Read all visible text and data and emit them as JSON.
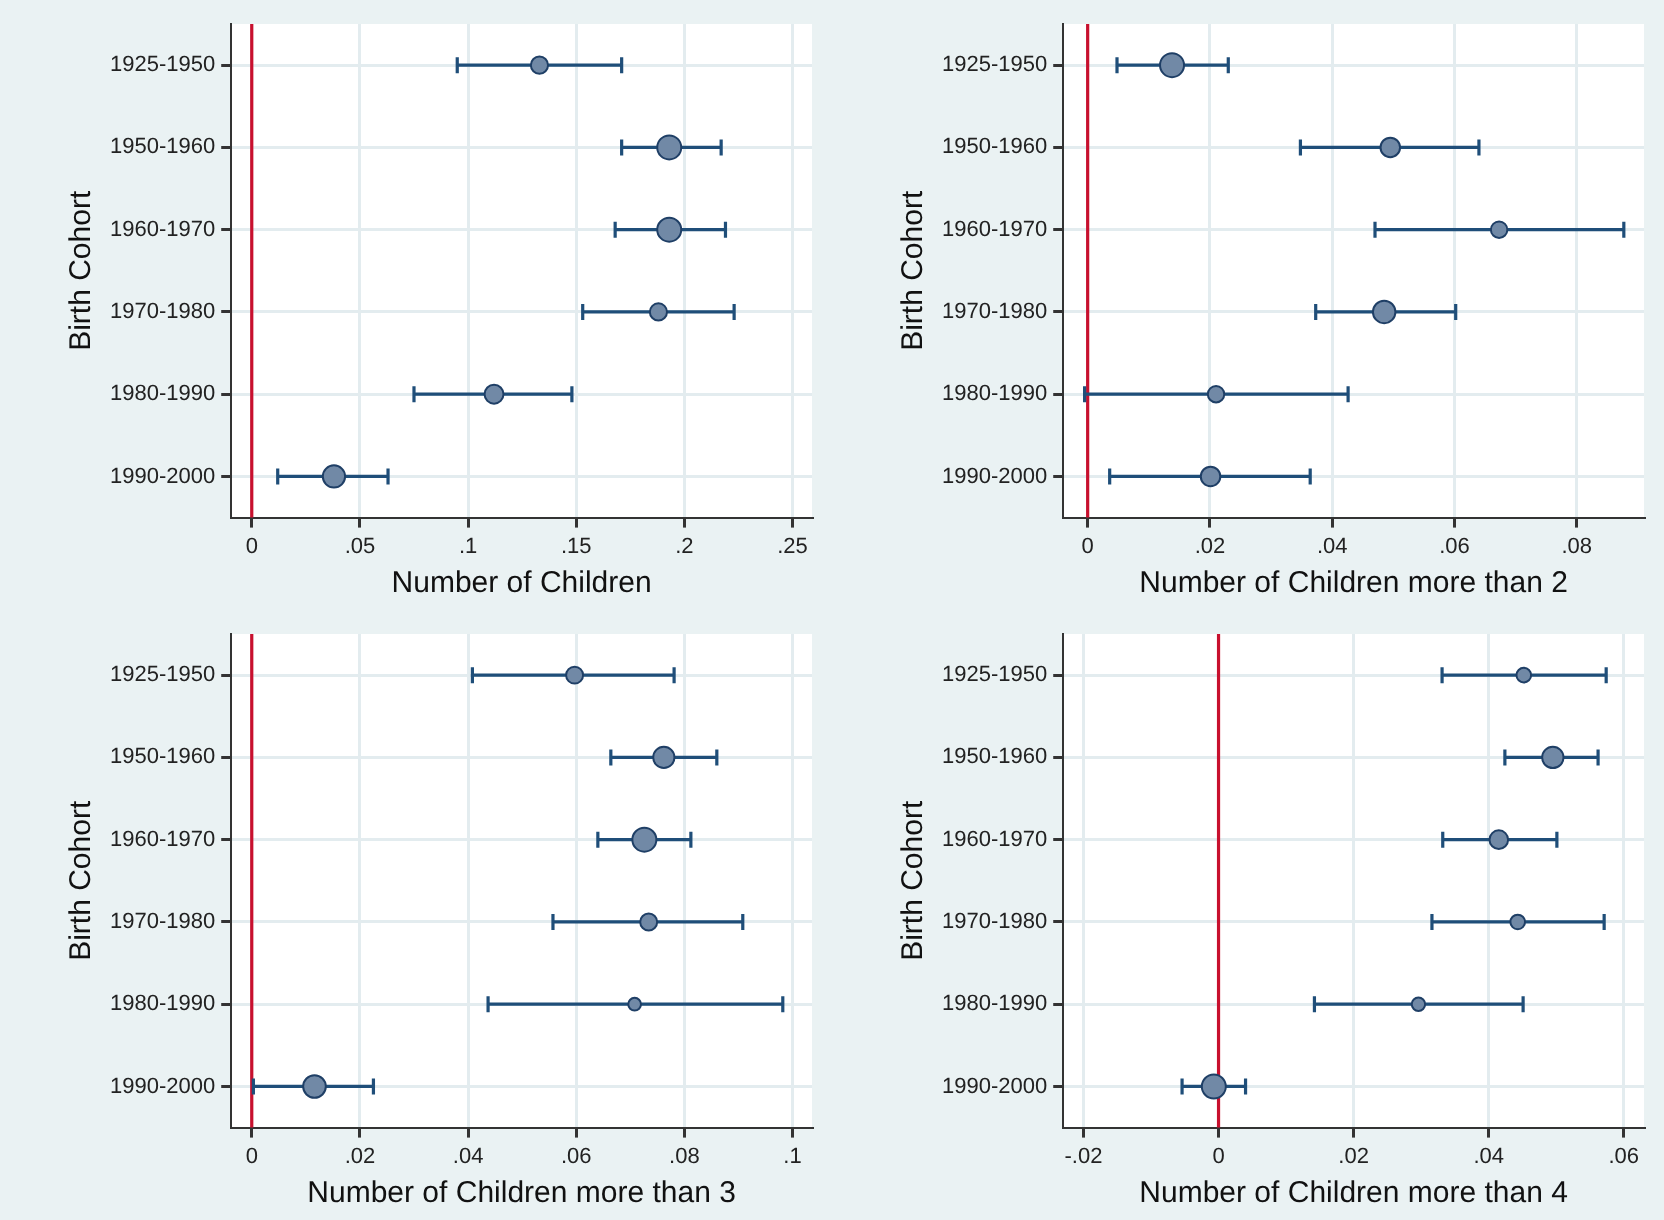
{
  "chart_data": [
    {
      "type": "bubble",
      "orientation": "horizontal",
      "xlabel": "Number of Children",
      "ylabel": "Birth Cohort",
      "categories": [
        "1925-1950",
        "1950-1960",
        "1960-1970",
        "1970-1980",
        "1980-1990",
        "1990-2000"
      ],
      "values": [
        0.133,
        0.193,
        0.193,
        0.188,
        0.112,
        0.038
      ],
      "errors": [
        [
          0.095,
          0.171
        ],
        [
          0.171,
          0.217
        ],
        [
          0.168,
          0.219
        ],
        [
          0.153,
          0.223
        ],
        [
          0.075,
          0.148
        ],
        [
          0.012,
          0.063
        ]
      ],
      "sizes": [
        0.51,
        1,
        1,
        0.51,
        0.62,
        0.86
      ],
      "color": "#7189a6",
      "xlim": [
        -0.0095,
        0.259
      ],
      "xticks": [
        {
          "value": 0,
          "label": "0"
        },
        {
          "value": 0.05,
          "label": ".05"
        },
        {
          "value": 0.1,
          "label": ".1"
        },
        {
          "value": 0.15,
          "label": ".15"
        },
        {
          "value": 0.2,
          "label": ".2"
        },
        {
          "value": 0.25,
          "label": ".25"
        }
      ],
      "ref_lines": [
        {
          "axis": "x",
          "value": 0,
          "color": "#c8102e"
        }
      ],
      "grid": true,
      "legend": false,
      "marker": "circle"
    },
    {
      "type": "bubble",
      "orientation": "horizontal",
      "xlabel": "Number of Children more than 2",
      "ylabel": "Birth Cohort",
      "categories": [
        "1925-1950",
        "1950-1960",
        "1960-1970",
        "1970-1980",
        "1980-1990",
        "1990-2000"
      ],
      "values": [
        0.0138,
        0.0495,
        0.0673,
        0.0485,
        0.021,
        0.0201
      ],
      "errors": [
        [
          0.0048,
          0.023
        ],
        [
          0.0348,
          0.064
        ],
        [
          0.047,
          0.0877
        ],
        [
          0.0373,
          0.0602
        ],
        [
          -0.0005,
          0.0426
        ],
        [
          0.0036,
          0.0364
        ]
      ],
      "sizes": [
        1,
        0.66,
        0.47,
        0.88,
        0.47,
        0.66
      ],
      "color": "#7189a6",
      "xlim": [
        -0.004,
        0.091
      ],
      "xticks": [
        {
          "value": 0,
          "label": "0"
        },
        {
          "value": 0.02,
          "label": ".02"
        },
        {
          "value": 0.04,
          "label": ".04"
        },
        {
          "value": 0.06,
          "label": ".06"
        },
        {
          "value": 0.08,
          "label": ".08"
        }
      ],
      "ref_lines": [
        {
          "axis": "x",
          "value": 0,
          "color": "#c8102e"
        }
      ],
      "grid": true,
      "legend": false,
      "marker": "circle"
    },
    {
      "type": "bubble",
      "orientation": "horizontal",
      "xlabel": "Number of Children more than 3",
      "ylabel": "Birth Cohort",
      "categories": [
        "1925-1950",
        "1950-1960",
        "1960-1970",
        "1970-1980",
        "1980-1990",
        "1990-2000"
      ],
      "values": [
        0.0597,
        0.0762,
        0.0726,
        0.0734,
        0.0708,
        0.0116
      ],
      "errors": [
        [
          0.0408,
          0.0781
        ],
        [
          0.0664,
          0.086
        ],
        [
          0.064,
          0.0812
        ],
        [
          0.0557,
          0.0908
        ],
        [
          0.0437,
          0.0982
        ],
        [
          0.0003,
          0.0225
        ]
      ],
      "sizes": [
        0.5,
        0.78,
        1,
        0.5,
        0.28,
        0.89
      ],
      "color": "#7189a6",
      "xlim": [
        -0.0038,
        0.1036
      ],
      "xticks": [
        {
          "value": 0,
          "label": "0"
        },
        {
          "value": 0.02,
          "label": ".02"
        },
        {
          "value": 0.04,
          "label": ".04"
        },
        {
          "value": 0.06,
          "label": ".06"
        },
        {
          "value": 0.08,
          "label": ".08"
        },
        {
          "value": 0.1,
          "label": ".1"
        }
      ],
      "ref_lines": [
        {
          "axis": "x",
          "value": 0,
          "color": "#c8102e"
        }
      ],
      "grid": true,
      "legend": false,
      "marker": "circle"
    },
    {
      "type": "bubble",
      "orientation": "horizontal",
      "xlabel": "Number of Children more than 4",
      "ylabel": "Birth Cohort",
      "categories": [
        "1925-1950",
        "1950-1960",
        "1960-1970",
        "1970-1980",
        "1980-1990",
        "1990-2000"
      ],
      "values": [
        0.0452,
        0.0495,
        0.0415,
        0.0443,
        0.0296,
        -0.0007
      ],
      "errors": [
        [
          0.0331,
          0.0574
        ],
        [
          0.0424,
          0.0562
        ],
        [
          0.0332,
          0.0501
        ],
        [
          0.0316,
          0.0571
        ],
        [
          0.0142,
          0.0451
        ],
        [
          -0.0054,
          0.004
        ]
      ],
      "sizes": [
        0.37,
        0.79,
        0.6,
        0.37,
        0.31,
        1
      ],
      "color": "#7189a6",
      "xlim": [
        -0.023,
        0.063
      ],
      "xticks": [
        {
          "value": -0.02,
          "label": "-.02"
        },
        {
          "value": 0,
          "label": "0"
        },
        {
          "value": 0.02,
          "label": ".02"
        },
        {
          "value": 0.04,
          "label": ".04"
        },
        {
          "value": 0.06,
          "label": ".06"
        }
      ],
      "ref_lines": [
        {
          "axis": "x",
          "value": 0,
          "color": "#c8102e"
        }
      ],
      "grid": true,
      "legend": false,
      "marker": "circle"
    }
  ]
}
